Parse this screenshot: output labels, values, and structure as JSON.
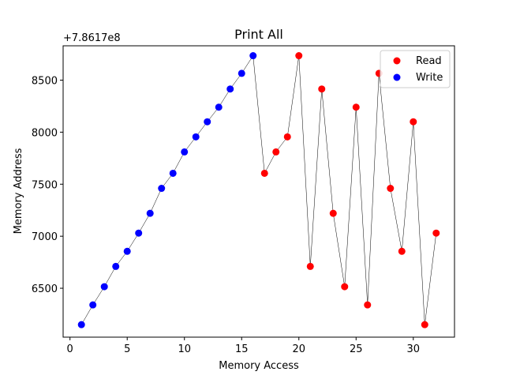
{
  "chart_data": {
    "type": "scatter",
    "title": "Print All",
    "xlabel": "Memory Access",
    "ylabel": "Memory Address",
    "offset_label": "+7.8617e8",
    "xlim": [
      -0.6,
      33.6
    ],
    "ylim": [
      6030,
      8830
    ],
    "x_ticks": [
      0,
      5,
      10,
      15,
      20,
      25,
      30
    ],
    "y_ticks": [
      6500,
      7000,
      7500,
      8000,
      8500
    ],
    "grid": false,
    "legend_position": "top-right",
    "line_color": "#000000",
    "series": [
      {
        "name": "Read",
        "color": "#ff0000",
        "points": [
          {
            "x": 17,
            "y": 7605
          },
          {
            "x": 18,
            "y": 7810
          },
          {
            "x": 19,
            "y": 7955
          },
          {
            "x": 20,
            "y": 8735
          },
          {
            "x": 21,
            "y": 6710
          },
          {
            "x": 22,
            "y": 8415
          },
          {
            "x": 23,
            "y": 7220
          },
          {
            "x": 24,
            "y": 6515
          },
          {
            "x": 25,
            "y": 8240
          },
          {
            "x": 26,
            "y": 6340
          },
          {
            "x": 27,
            "y": 8565
          },
          {
            "x": 28,
            "y": 7460
          },
          {
            "x": 29,
            "y": 6855
          },
          {
            "x": 30,
            "y": 8100
          },
          {
            "x": 31,
            "y": 6150
          },
          {
            "x": 32,
            "y": 7030
          }
        ]
      },
      {
        "name": "Write",
        "color": "#0000ff",
        "points": [
          {
            "x": 1,
            "y": 6150
          },
          {
            "x": 2,
            "y": 6340
          },
          {
            "x": 3,
            "y": 6515
          },
          {
            "x": 4,
            "y": 6710
          },
          {
            "x": 5,
            "y": 6855
          },
          {
            "x": 6,
            "y": 7030
          },
          {
            "x": 7,
            "y": 7220
          },
          {
            "x": 8,
            "y": 7460
          },
          {
            "x": 9,
            "y": 7605
          },
          {
            "x": 10,
            "y": 7810
          },
          {
            "x": 11,
            "y": 7955
          },
          {
            "x": 12,
            "y": 8100
          },
          {
            "x": 13,
            "y": 8240
          },
          {
            "x": 14,
            "y": 8415
          },
          {
            "x": 15,
            "y": 8565
          },
          {
            "x": 16,
            "y": 8735
          }
        ]
      }
    ]
  }
}
